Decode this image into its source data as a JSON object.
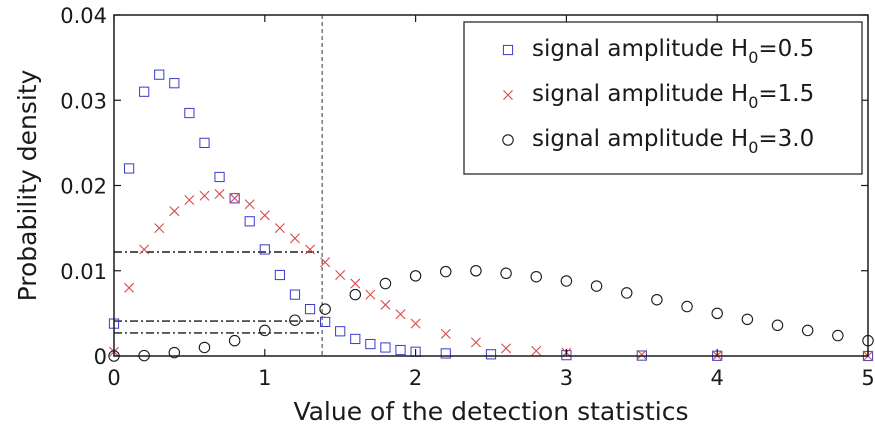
{
  "chart_data": {
    "type": "scatter",
    "xlabel": "Value of the detection statistics",
    "ylabel": "Probability density",
    "xlim": [
      0,
      5
    ],
    "ylim": [
      0,
      0.04
    ],
    "x_ticks": [
      "0",
      "1",
      "2",
      "3",
      "4",
      "5"
    ],
    "y_ticks": [
      "0",
      "0.01",
      "0.02",
      "0.03",
      "0.04"
    ],
    "grid": false,
    "legend_position": "top-right",
    "colors": {
      "h05": "#3a3acc",
      "h15": "#d94a4a",
      "h30": "#1a1a1a",
      "axis": "#1a1a1a"
    },
    "series": [
      {
        "key": "h05",
        "marker": "square",
        "legend_main": "signal amplitude H",
        "legend_sub": "0",
        "legend_tail": "=0.5",
        "x": [
          0.0,
          0.1,
          0.2,
          0.3,
          0.4,
          0.5,
          0.6,
          0.7,
          0.8,
          0.9,
          1.0,
          1.1,
          1.2,
          1.3,
          1.4,
          1.5,
          1.6,
          1.7,
          1.8,
          1.9,
          2.0,
          2.2,
          2.5,
          3.0,
          3.5,
          4.0,
          5.0
        ],
        "y": [
          0.0038,
          0.022,
          0.031,
          0.033,
          0.032,
          0.0285,
          0.025,
          0.021,
          0.0185,
          0.0158,
          0.0125,
          0.0095,
          0.0072,
          0.0055,
          0.004,
          0.0029,
          0.002,
          0.0014,
          0.001,
          0.0007,
          0.0005,
          0.0003,
          0.0002,
          0.0001,
          5e-05,
          3e-05,
          0.0
        ]
      },
      {
        "key": "h15",
        "marker": "x",
        "legend_main": "signal amplitude H",
        "legend_sub": "0",
        "legend_tail": "=1.5",
        "x": [
          0.0,
          0.1,
          0.2,
          0.3,
          0.4,
          0.5,
          0.6,
          0.7,
          0.8,
          0.9,
          1.0,
          1.1,
          1.2,
          1.3,
          1.4,
          1.5,
          1.6,
          1.7,
          1.8,
          1.9,
          2.0,
          2.2,
          2.4,
          2.6,
          2.8,
          3.0,
          3.5,
          4.0,
          5.0
        ],
        "y": [
          0.0005,
          0.008,
          0.0125,
          0.015,
          0.017,
          0.0183,
          0.0188,
          0.019,
          0.0185,
          0.0178,
          0.0165,
          0.015,
          0.0138,
          0.0125,
          0.011,
          0.0095,
          0.0085,
          0.0072,
          0.006,
          0.0049,
          0.0038,
          0.0026,
          0.0016,
          0.0009,
          0.0006,
          0.0004,
          0.00015,
          5e-05,
          0.0
        ]
      },
      {
        "key": "h30",
        "marker": "circle",
        "legend_main": "signal amplitude H",
        "legend_sub": "0",
        "legend_tail": "=3.0",
        "x": [
          0.0,
          0.2,
          0.4,
          0.6,
          0.8,
          1.0,
          1.2,
          1.4,
          1.6,
          1.8,
          2.0,
          2.2,
          2.4,
          2.6,
          2.8,
          3.0,
          3.2,
          3.4,
          3.6,
          3.8,
          4.0,
          4.2,
          4.4,
          4.6,
          4.8,
          5.0
        ],
        "y": [
          0.0,
          5e-05,
          0.0004,
          0.001,
          0.0018,
          0.003,
          0.0042,
          0.0055,
          0.0072,
          0.0085,
          0.0094,
          0.0099,
          0.01,
          0.0097,
          0.0093,
          0.0088,
          0.0082,
          0.0074,
          0.0066,
          0.0058,
          0.005,
          0.0043,
          0.0036,
          0.003,
          0.0024,
          0.0018
        ]
      }
    ],
    "annotations": {
      "vline_x": 1.38,
      "hlines": [
        {
          "y": 0.0122,
          "x_to": 1.38
        },
        {
          "y": 0.0041,
          "x_to": 1.38
        },
        {
          "y": 0.0027,
          "x_to": 1.38
        }
      ]
    }
  }
}
